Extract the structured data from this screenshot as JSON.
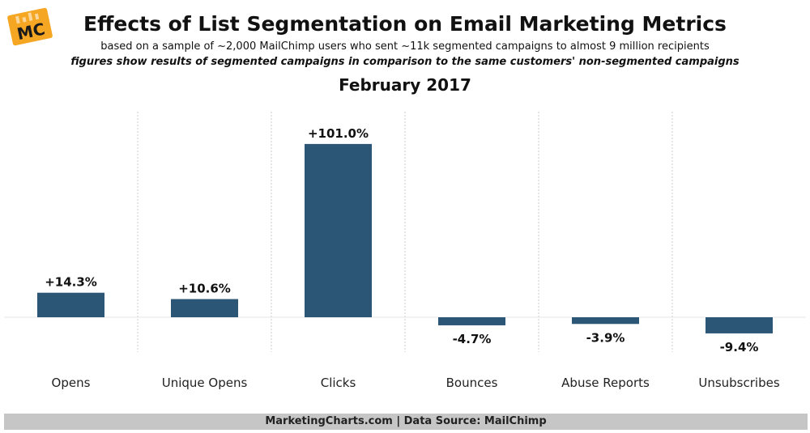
{
  "logo": {
    "text": "MC",
    "color": "#f5a623"
  },
  "header": {
    "title": "Effects of List Segmentation on Email Marketing Metrics",
    "subtitle": "based on a sample of ~2,000 MailChimp users who sent ~11k segmented campaigns to almost 9 million recipients",
    "note": "figures show results of segmented campaigns in comparison to the same customers' non-segmented campaigns",
    "period": "February 2017"
  },
  "footer": {
    "text": "MarketingCharts.com | Data Source: MailChimp"
  },
  "colors": {
    "bar": "#2b5676",
    "gridline": "#cccccc",
    "baseline": "#e6e6e6"
  },
  "chart_data": {
    "type": "bar",
    "categories": [
      "Opens",
      "Unique Opens",
      "Clicks",
      "Bounces",
      "Abuse Reports",
      "Unsubscribes"
    ],
    "values": [
      14.3,
      10.6,
      101.0,
      -4.7,
      -3.9,
      -9.4
    ],
    "data_labels": [
      "+14.3%",
      "+10.6%",
      "+101.0%",
      "-4.7%",
      "-3.9%",
      "-9.4%"
    ],
    "unit": "%",
    "ylim": [
      -20,
      115
    ],
    "grid": "vertical-dotted"
  }
}
